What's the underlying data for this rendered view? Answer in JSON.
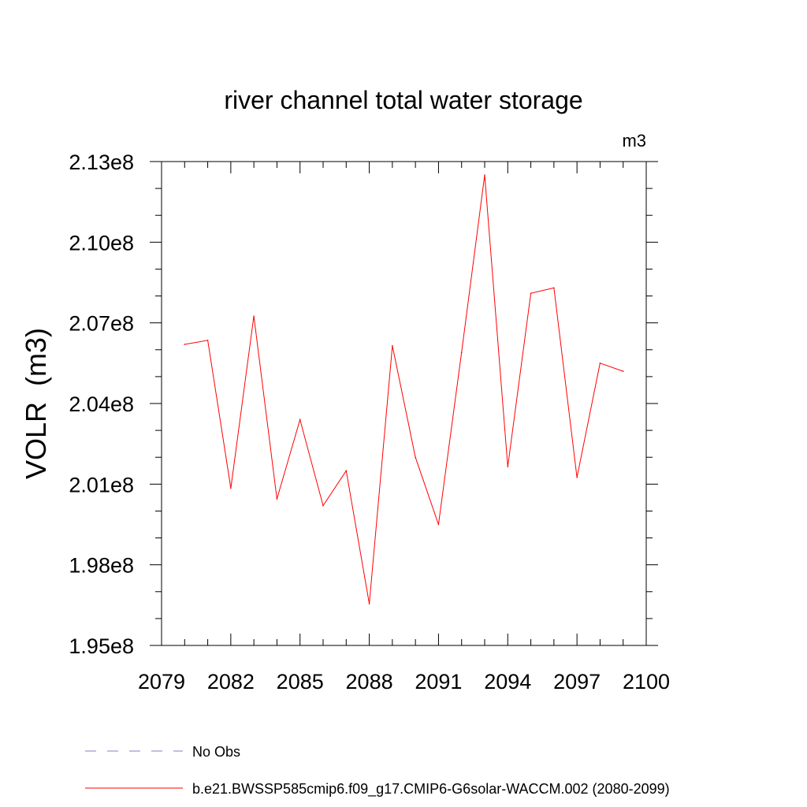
{
  "chart_data": {
    "type": "line",
    "title": "river channel total water storage",
    "units_label": "m3",
    "ylabel": "VOLR  (m3)",
    "xlabel": "",
    "xlim": [
      2079,
      2100
    ],
    "ylim": [
      195000000,
      213000000
    ],
    "x_ticks": [
      "2079",
      "2082",
      "2085",
      "2088",
      "2091",
      "2094",
      "2097",
      "2100"
    ],
    "y_ticks": [
      "1.95e8",
      "1.98e8",
      "2.01e8",
      "2.04e8",
      "2.07e8",
      "2.10e8",
      "2.13e8"
    ],
    "x": [
      2080,
      2081,
      2082,
      2083,
      2084,
      2085,
      2086,
      2087,
      2088,
      2089,
      2090,
      2091,
      2092,
      2093,
      2094,
      2095,
      2096,
      2097,
      2098,
      2099
    ],
    "series": [
      {
        "name": "b.e21.BWSSP585cmip6.f09_g17.CMIP6-G6solar-WACCM.002 (2080-2099)",
        "color": "#ff0000",
        "values": [
          206200000,
          206350000,
          200850000,
          207250000,
          200450000,
          203400000,
          200200000,
          201500000,
          196550000,
          206150000,
          202000000,
          199500000,
          205900000,
          212500000,
          201650000,
          208100000,
          208300000,
          201250000,
          205500000,
          205200000
        ]
      }
    ],
    "legend": {
      "placement": "bottom",
      "entries": [
        {
          "label": "No Obs",
          "color": "#8080c0",
          "style": "dashed"
        },
        {
          "label": "b.e21.BWSSP585cmip6.f09_g17.CMIP6-G6solar-WACCM.002 (2080-2099)",
          "color": "#ff0000",
          "style": "solid"
        }
      ]
    },
    "grid": false
  }
}
